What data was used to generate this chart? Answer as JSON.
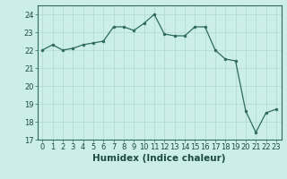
{
  "title": "",
  "xlabel": "Humidex (Indice chaleur)",
  "ylabel": "",
  "x": [
    0,
    1,
    2,
    3,
    4,
    5,
    6,
    7,
    8,
    9,
    10,
    11,
    12,
    13,
    14,
    15,
    16,
    17,
    18,
    19,
    20,
    21,
    22,
    23
  ],
  "y": [
    22.0,
    22.3,
    22.0,
    22.1,
    22.3,
    22.4,
    22.5,
    23.3,
    23.3,
    23.1,
    23.5,
    24.0,
    22.9,
    22.8,
    22.8,
    23.3,
    23.3,
    22.0,
    21.5,
    21.4,
    18.6,
    17.4,
    18.5,
    18.7
  ],
  "line_color": "#2e6b5e",
  "marker_color": "#2e6b5e",
  "bg_color": "#cceee8",
  "grid_color_major": "#b0d8d0",
  "grid_color_minor": "#d8f0ec",
  "text_color": "#1a4a40",
  "spine_color": "#2e6b5e",
  "ylim": [
    17,
    24.5
  ],
  "yticks": [
    17,
    18,
    19,
    20,
    21,
    22,
    23,
    24
  ],
  "xlim": [
    -0.5,
    23.5
  ],
  "tick_fontsize": 6,
  "label_fontsize": 7.5
}
